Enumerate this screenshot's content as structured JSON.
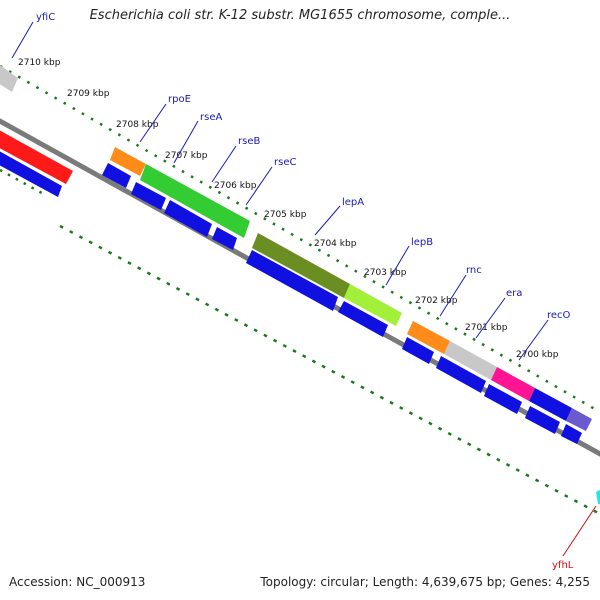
{
  "header": {
    "title": "Escherichia coli str. K-12 substr. MG1655 chromosome, comple..."
  },
  "footer": {
    "accession": "Accession: NC_000913",
    "summary": "Topology: circular; Length: 4,639,675 bp; Genes: 4,255"
  },
  "scale": {
    "ticks": [
      "2710 kbp",
      "2709 kbp",
      "2708 kbp",
      "2707 kbp",
      "2706 kbp",
      "2705 kbp",
      "2704 kbp",
      "2703 kbp",
      "2702 kbp",
      "2701 kbp",
      "2700 kbp"
    ]
  },
  "genes": [
    "yfiC",
    "rpoE",
    "rseA",
    "rseB",
    "rseC",
    "lepA",
    "lepB",
    "rnc",
    "era",
    "recO",
    "yfhL"
  ],
  "colors": {
    "gene_label": "#1a1ab8",
    "yfhL_label": "#cc1111",
    "backbone": "#7a7a7a",
    "tick_marks": "#1a7a1a",
    "cds_blue": "#1010e0",
    "rpoE": "#ff8c1a",
    "rseA_rseB": "#33cc33",
    "rseC": "#2ea82e",
    "lepA": "#6b8e23",
    "lepB": "#a3f03a",
    "rnc": "#ff8c1a",
    "era": "#c8c8c8",
    "recO": "#ff1493",
    "yfhL": "#6a5acd",
    "red_feature": "#ff1a1a",
    "cyan_feature": "#22e5ee"
  }
}
